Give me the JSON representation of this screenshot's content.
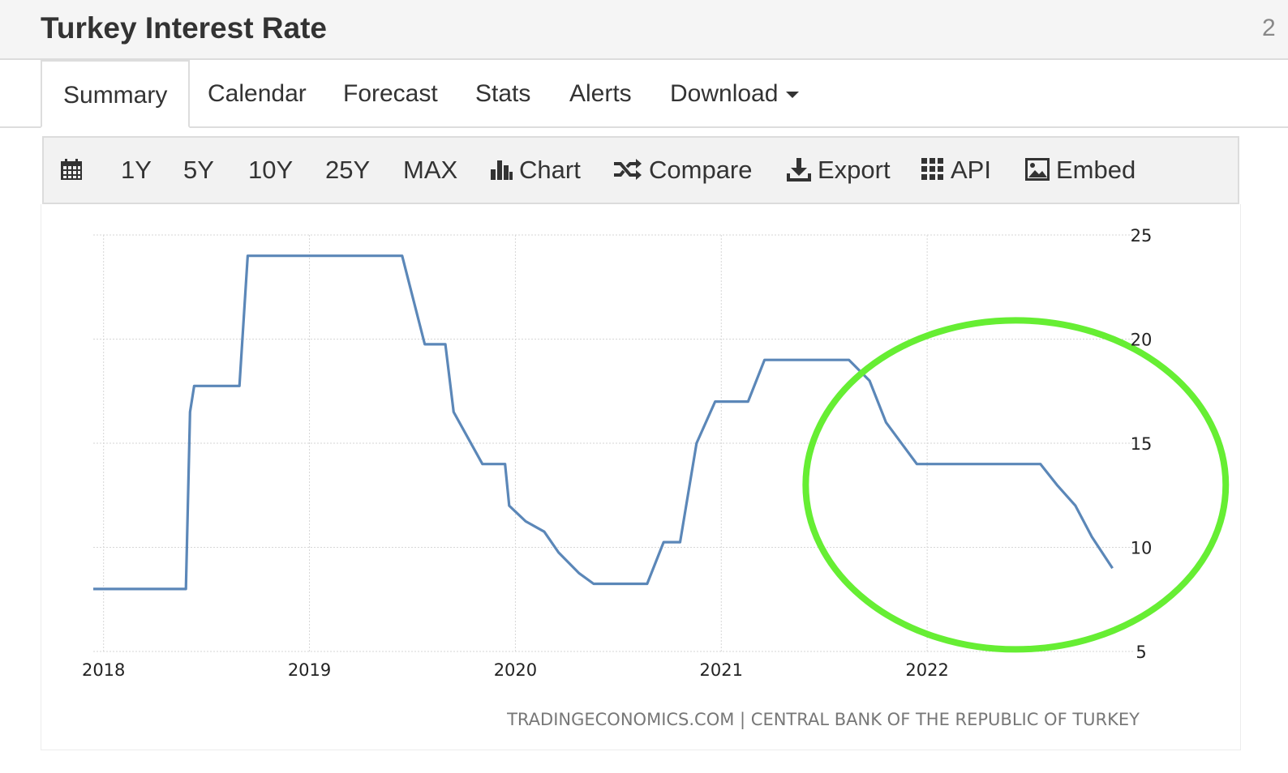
{
  "header": {
    "title": "Turkey Interest Rate",
    "right_text": "2"
  },
  "tabs": [
    {
      "label": "Summary",
      "active": true
    },
    {
      "label": "Calendar"
    },
    {
      "label": "Forecast"
    },
    {
      "label": "Stats"
    },
    {
      "label": "Alerts"
    },
    {
      "label": "Download"
    }
  ],
  "toolbar": {
    "calendar_icon": "calendar-icon",
    "ranges": [
      "1Y",
      "5Y",
      "10Y",
      "25Y",
      "MAX"
    ],
    "chart_label": "Chart",
    "compare_label": "Compare",
    "export_label": "Export",
    "api_label": "API",
    "embed_label": "Embed",
    "icons": [
      "bar-chart-icon",
      "shuffle-icon",
      "download-icon",
      "grid-icon",
      "image-icon"
    ]
  },
  "chart_data": {
    "type": "line",
    "source": "TRADINGECONOMICS.COM | CENTRAL BANK OF THE REPUBLIC OF TURKEY",
    "xlim": [
      2017.95,
      2023.0
    ],
    "ylim": [
      5,
      25
    ],
    "x_ticks": [
      2018,
      2019,
      2020,
      2021,
      2022
    ],
    "y_ticks": [
      5,
      10,
      15,
      20,
      25
    ],
    "y_tick_labels": [
      "5",
      "10",
      "15",
      "20",
      "25"
    ],
    "x_tick_labels": [
      "2018",
      "2019",
      "2020",
      "2021",
      "2022"
    ],
    "line_color": "#5b87b8",
    "highlight_color": "#66ee33",
    "highlight": {
      "center": [
        2022.43,
        13
      ],
      "radius_years": 1.02,
      "radius_rate": 7.9
    },
    "series": [
      {
        "x": [
          2017.95,
          2018.4,
          2018.42,
          2018.44,
          2018.66,
          2018.7,
          2019.45,
          2019.56,
          2019.66,
          2019.7,
          2019.84,
          2019.95,
          2019.97,
          2020.05,
          2020.14,
          2020.21,
          2020.31,
          2020.38,
          2020.64,
          2020.72,
          2020.8,
          2020.88,
          2020.97,
          2021.13,
          2021.21,
          2021.62,
          2021.72,
          2021.8,
          2021.95,
          2022.55,
          2022.63,
          2022.72,
          2022.8,
          2022.9
        ],
        "y": [
          8.0,
          8.0,
          16.5,
          17.75,
          17.75,
          24.0,
          24.0,
          19.75,
          19.75,
          16.5,
          14.0,
          14.0,
          12.0,
          11.25,
          10.75,
          9.75,
          8.75,
          8.25,
          8.25,
          10.25,
          10.25,
          15.0,
          17.0,
          17.0,
          19.0,
          19.0,
          18.0,
          16.0,
          14.0,
          14.0,
          13.0,
          12.0,
          10.5,
          9.0
        ]
      }
    ]
  }
}
